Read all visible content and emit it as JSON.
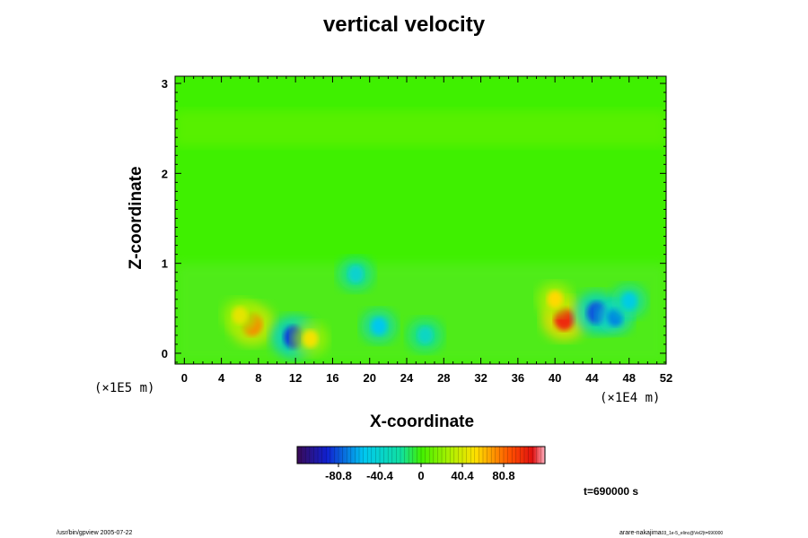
{
  "chart_data": {
    "type": "heatmap",
    "title": "vertical velocity",
    "xlabel": "X-coordinate",
    "ylabel": "Z-coordinate",
    "x_units": "(×1E4 m)",
    "y_units": "(×1E5 m)",
    "xlim": [
      -1,
      52
    ],
    "ylim": [
      -0.12,
      3.08
    ],
    "x_ticks": [
      0,
      4,
      8,
      12,
      16,
      20,
      24,
      28,
      32,
      36,
      40,
      44,
      48,
      52
    ],
    "x_tick_labels": [
      "0",
      "4",
      "8",
      "12",
      "16",
      "20",
      "24",
      "28",
      "32",
      "36",
      "40",
      "44",
      "48",
      "52"
    ],
    "y_ticks": [
      0,
      1,
      2,
      3
    ],
    "y_tick_labels": [
      "0",
      "1",
      "2",
      "3"
    ],
    "colorbar": {
      "min": -121.2,
      "max": 121.2,
      "ticks": [
        -80.8,
        -40.4,
        0,
        40.4,
        80.8
      ],
      "tick_labels": [
        "-80.8",
        "-40.4",
        "0",
        "40.4",
        "80.8"
      ]
    },
    "features": [
      {
        "kind": "updraft",
        "x": 7.3,
        "z": 0.32,
        "value": 75
      },
      {
        "kind": "updraft",
        "x": 6.0,
        "z": 0.42,
        "value": 45
      },
      {
        "kind": "downdraft",
        "x": 11.8,
        "z": 0.18,
        "value": -85
      },
      {
        "kind": "updraft",
        "x": 13.6,
        "z": 0.16,
        "value": 50
      },
      {
        "kind": "downdraft",
        "x": 21.0,
        "z": 0.3,
        "value": -55
      },
      {
        "kind": "downdraft",
        "x": 26.0,
        "z": 0.2,
        "value": -35
      },
      {
        "kind": "downdraft",
        "x": 18.5,
        "z": 0.88,
        "value": -40
      },
      {
        "kind": "updraft",
        "x": 41.0,
        "z": 0.38,
        "value": 100
      },
      {
        "kind": "updraft",
        "x": 40.0,
        "z": 0.6,
        "value": 55
      },
      {
        "kind": "downdraft",
        "x": 44.5,
        "z": 0.45,
        "value": -80
      },
      {
        "kind": "downdraft",
        "x": 46.5,
        "z": 0.4,
        "value": -70
      },
      {
        "kind": "downdraft",
        "x": 48.0,
        "z": 0.58,
        "value": -50
      }
    ],
    "time_label": "t=690000 s"
  },
  "footer": {
    "left": "/usr/bin/gpview 2005-07-22",
    "right": "arare-nakajima",
    "right_sub": "03_1e-5_elinc@Vel2|t=690000"
  }
}
